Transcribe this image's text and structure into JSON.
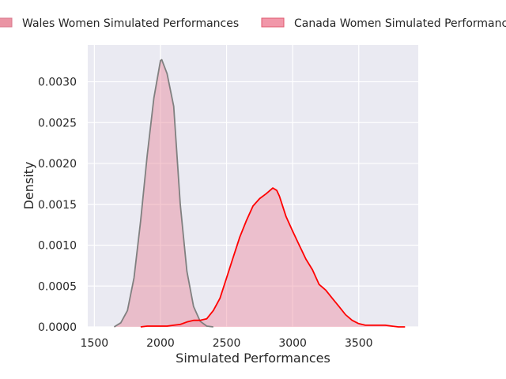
{
  "chart_data": {
    "type": "area",
    "xlabel": "Simulated Performances",
    "ylabel": "Density",
    "xlim": [
      1450,
      3950
    ],
    "ylim": [
      0,
      0.00345
    ],
    "x_ticks": [
      1500,
      2000,
      2500,
      3000,
      3500
    ],
    "x_tick_labels": [
      "1500",
      "2000",
      "2500",
      "3000",
      "3500"
    ],
    "y_ticks": [
      0,
      0.0005,
      0.001,
      0.0015,
      0.002,
      0.0025,
      0.003
    ],
    "y_tick_labels": [
      "0.0000",
      "0.0005",
      "0.0010",
      "0.0015",
      "0.0020",
      "0.0025",
      "0.0030"
    ],
    "grid": true,
    "legend_position": "top",
    "series": [
      {
        "name": "Wales Women Simulated Performances",
        "line_color": "#808080",
        "fill_color": "#e8889a",
        "x": [
          1650,
          1700,
          1750,
          1800,
          1850,
          1900,
          1950,
          2000,
          2010,
          2050,
          2100,
          2150,
          2200,
          2250,
          2300,
          2350,
          2400
        ],
        "y": [
          0.0,
          5e-05,
          0.0002,
          0.0006,
          0.0013,
          0.0021,
          0.0028,
          0.00326,
          0.00327,
          0.0031,
          0.0027,
          0.0015,
          0.00068,
          0.00025,
          7e-05,
          1e-05,
          0.0
        ]
      },
      {
        "name": "Canada Women Simulated Performances",
        "line_color": "#ff0000",
        "fill_color": "#f08ca0",
        "x": [
          1850,
          1900,
          1950,
          2000,
          2050,
          2100,
          2150,
          2200,
          2250,
          2300,
          2350,
          2400,
          2450,
          2500,
          2550,
          2600,
          2650,
          2700,
          2750,
          2800,
          2850,
          2880,
          2900,
          2950,
          3000,
          3050,
          3100,
          3150,
          3200,
          3250,
          3300,
          3350,
          3400,
          3450,
          3500,
          3550,
          3600,
          3650,
          3700,
          3750,
          3800,
          3850
        ],
        "y": [
          0.0,
          1e-05,
          1e-05,
          1e-05,
          1e-05,
          2e-05,
          3e-05,
          6e-05,
          8e-05,
          8e-05,
          0.0001,
          0.0002,
          0.00035,
          0.0006,
          0.00085,
          0.0011,
          0.0013,
          0.00148,
          0.00157,
          0.00163,
          0.0017,
          0.00167,
          0.0016,
          0.00135,
          0.00117,
          0.001,
          0.00083,
          0.0007,
          0.00052,
          0.00045,
          0.00035,
          0.00025,
          0.00015,
          8e-05,
          4e-05,
          2e-05,
          2e-05,
          2e-05,
          2e-05,
          1e-05,
          0.0,
          0.0
        ]
      }
    ]
  }
}
